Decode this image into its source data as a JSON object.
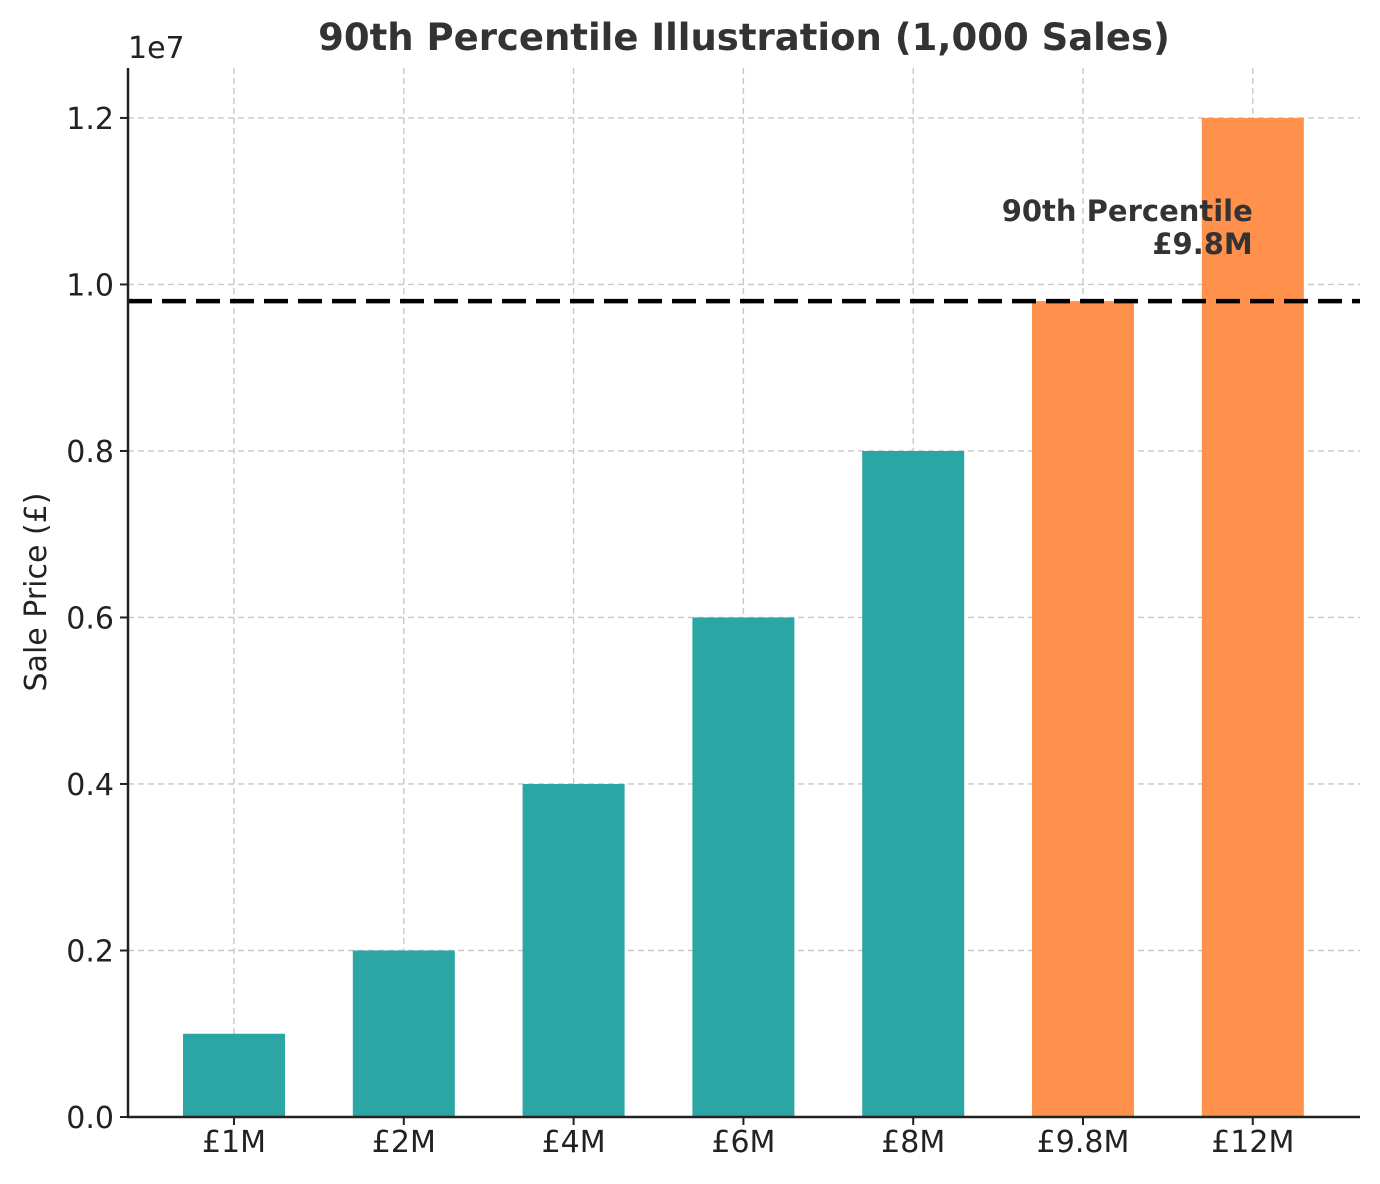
{
  "chart_data": {
    "type": "bar",
    "title": "90th Percentile Illustration (1,000 Sales)",
    "xlabel": "",
    "ylabel": "Sale Price (£)",
    "y_exponent_label": "1e7",
    "categories": [
      "£1M",
      "£2M",
      "£4M",
      "£6M",
      "£8M",
      "£9.8M",
      "£12M"
    ],
    "values": [
      1000000,
      2000000,
      4000000,
      6000000,
      8000000,
      9800000,
      12000000
    ],
    "bar_colors": [
      "#2ca6a4",
      "#2ca6a4",
      "#2ca6a4",
      "#2ca6a4",
      "#2ca6a4",
      "#ff914d",
      "#ff914d"
    ],
    "ylim": [
      0,
      12600000
    ],
    "yticks": [
      0,
      2000000,
      4000000,
      6000000,
      8000000,
      10000000,
      12000000
    ],
    "ytick_labels": [
      "0.0",
      "0.2",
      "0.4",
      "0.6",
      "0.8",
      "1.0",
      "1.2"
    ],
    "grid": true,
    "reference_line": {
      "value": 9800000,
      "style": "dashed",
      "color": "#000000"
    },
    "annotation": {
      "lines": [
        "90th Percentile",
        "£9.8M"
      ],
      "anchor_category": "£12M",
      "anchor_value": 9800000
    }
  }
}
